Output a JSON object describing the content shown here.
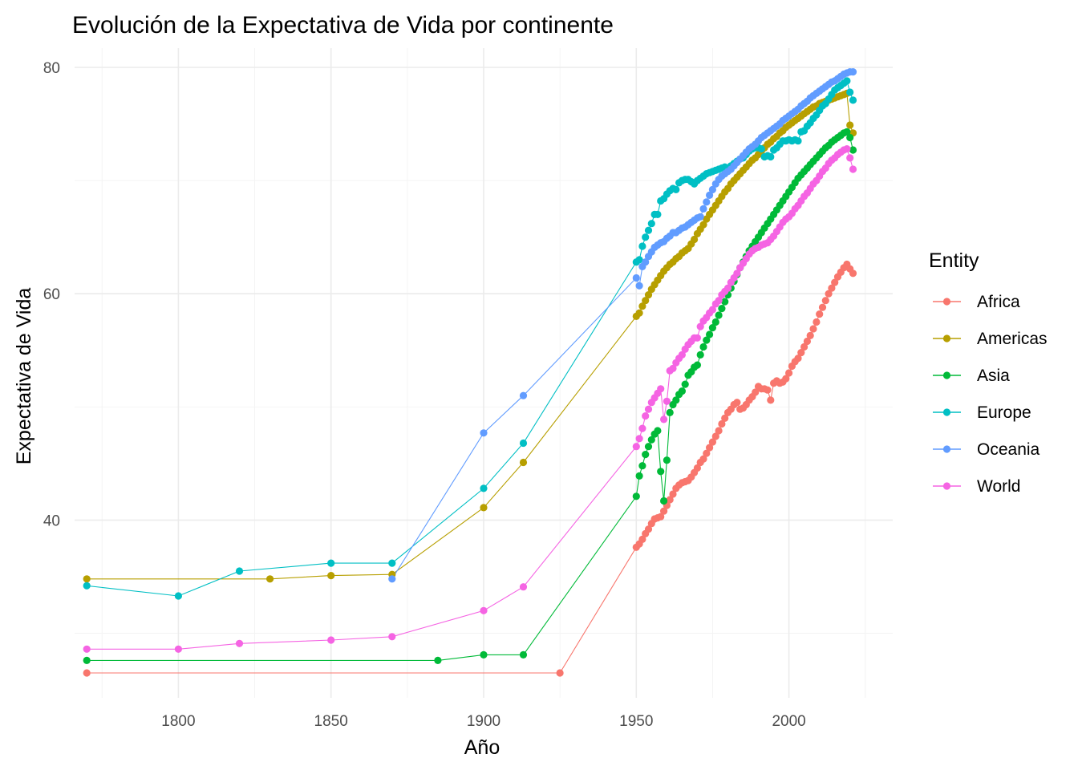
{
  "chart_data": {
    "type": "line",
    "title": "Evolución de la Expectativa de Vida por continente",
    "xlabel": "Año",
    "ylabel": "Expectativa de Vida",
    "xlim": [
      1766,
      2034
    ],
    "ylim": [
      24.3,
      81.7
    ],
    "x_ticks": [
      1800,
      1850,
      1900,
      1950,
      2000
    ],
    "x_minor_ticks": [
      1775,
      1825,
      1875,
      1925,
      1975,
      2025
    ],
    "y_ticks": [
      40,
      60,
      80
    ],
    "y_minor_ticks": [
      30,
      50,
      70
    ],
    "x_tick_labels": [
      "1800",
      "1850",
      "1900",
      "1950",
      "2000"
    ],
    "y_tick_labels": [
      "40",
      "60",
      "80"
    ],
    "grid": true,
    "legend": {
      "title": "Entity",
      "position": "right"
    },
    "series": [
      {
        "name": "Africa",
        "color": "#F8766D",
        "x": [
          1770,
          1925,
          1950,
          1951,
          1952,
          1953,
          1954,
          1955,
          1956,
          1957,
          1958,
          1959,
          1960,
          1961,
          1962,
          1963,
          1964,
          1965,
          1966,
          1967,
          1968,
          1969,
          1970,
          1971,
          1972,
          1973,
          1974,
          1975,
          1976,
          1977,
          1978,
          1979,
          1980,
          1981,
          1982,
          1983,
          1984,
          1985,
          1986,
          1987,
          1988,
          1989,
          1990,
          1991,
          1992,
          1993,
          1994,
          1995,
          1996,
          1997,
          1998,
          1999,
          2000,
          2001,
          2002,
          2003,
          2004,
          2005,
          2006,
          2007,
          2008,
          2009,
          2010,
          2011,
          2012,
          2013,
          2014,
          2015,
          2016,
          2017,
          2018,
          2019,
          2020,
          2021
        ],
        "values": [
          26.5,
          26.5,
          37.6,
          37.9,
          38.3,
          38.8,
          39.2,
          39.7,
          40.1,
          40.2,
          40.3,
          40.8,
          41.3,
          41.8,
          42.3,
          42.8,
          43.1,
          43.3,
          43.4,
          43.5,
          43.8,
          44.2,
          44.6,
          45.1,
          45.4,
          45.9,
          46.4,
          46.9,
          47.4,
          47.9,
          48.5,
          49.0,
          49.5,
          49.8,
          50.2,
          50.4,
          49.8,
          49.9,
          50.2,
          50.6,
          50.9,
          51.3,
          51.8,
          51.6,
          51.6,
          51.5,
          50.6,
          52.1,
          52.3,
          52.1,
          52.2,
          52.5,
          53.0,
          53.6,
          54.0,
          54.3,
          54.8,
          55.3,
          55.8,
          56.3,
          56.9,
          57.5,
          58.2,
          58.8,
          59.4,
          60.0,
          60.5,
          61.0,
          61.5,
          61.9,
          62.3,
          62.6,
          62.2,
          61.8
        ]
      },
      {
        "name": "Americas",
        "color": "#B79F00",
        "x": [
          1770,
          1830,
          1850,
          1870,
          1900,
          1913,
          1950,
          1951,
          1952,
          1953,
          1954,
          1955,
          1956,
          1957,
          1958,
          1959,
          1960,
          1961,
          1962,
          1963,
          1964,
          1965,
          1966,
          1967,
          1968,
          1969,
          1970,
          1971,
          1972,
          1973,
          1974,
          1975,
          1976,
          1977,
          1978,
          1979,
          1980,
          1981,
          1982,
          1983,
          1984,
          1985,
          1986,
          1987,
          1988,
          1989,
          1990,
          1991,
          1992,
          1993,
          1994,
          1995,
          1996,
          1997,
          1998,
          1999,
          2000,
          2001,
          2002,
          2003,
          2004,
          2005,
          2006,
          2007,
          2008,
          2009,
          2010,
          2011,
          2012,
          2013,
          2014,
          2015,
          2016,
          2017,
          2018,
          2019,
          2020,
          2021
        ],
        "values": [
          34.8,
          34.8,
          35.1,
          35.2,
          41.1,
          45.1,
          58.0,
          58.3,
          58.9,
          59.4,
          59.9,
          60.4,
          60.8,
          61.2,
          61.6,
          62.0,
          62.3,
          62.6,
          62.8,
          63.1,
          63.3,
          63.6,
          63.8,
          64.0,
          64.4,
          64.8,
          65.3,
          65.7,
          66.1,
          66.6,
          67.0,
          67.4,
          67.8,
          68.2,
          68.6,
          69.0,
          69.3,
          69.7,
          70.0,
          70.3,
          70.6,
          70.9,
          71.2,
          71.5,
          71.8,
          72.0,
          72.3,
          72.6,
          72.9,
          73.2,
          73.4,
          73.7,
          73.9,
          74.2,
          74.4,
          74.7,
          74.9,
          75.1,
          75.3,
          75.5,
          75.7,
          75.9,
          76.1,
          76.3,
          76.5,
          76.6,
          76.8,
          76.9,
          77.0,
          77.1,
          77.2,
          77.3,
          77.4,
          77.5,
          77.6,
          77.7,
          74.9,
          74.2
        ]
      },
      {
        "name": "Asia",
        "color": "#00BA38",
        "x": [
          1770,
          1885,
          1900,
          1913,
          1950,
          1951,
          1952,
          1953,
          1954,
          1955,
          1956,
          1957,
          1958,
          1959,
          1960,
          1961,
          1962,
          1963,
          1964,
          1965,
          1966,
          1967,
          1968,
          1969,
          1970,
          1971,
          1972,
          1973,
          1974,
          1975,
          1976,
          1977,
          1978,
          1979,
          1980,
          1981,
          1982,
          1983,
          1984,
          1985,
          1986,
          1987,
          1988,
          1989,
          1990,
          1991,
          1992,
          1993,
          1994,
          1995,
          1996,
          1997,
          1998,
          1999,
          2000,
          2001,
          2002,
          2003,
          2004,
          2005,
          2006,
          2007,
          2008,
          2009,
          2010,
          2011,
          2012,
          2013,
          2014,
          2015,
          2016,
          2017,
          2018,
          2019,
          2020,
          2021
        ],
        "values": [
          27.6,
          27.6,
          28.1,
          28.1,
          42.1,
          43.9,
          44.8,
          45.8,
          46.5,
          47.1,
          47.6,
          47.9,
          44.3,
          41.7,
          45.3,
          49.5,
          50.2,
          50.6,
          51.1,
          51.4,
          52.0,
          52.8,
          53.1,
          53.5,
          53.7,
          54.6,
          55.3,
          55.9,
          56.4,
          57.0,
          57.5,
          58.1,
          58.7,
          59.3,
          59.9,
          60.5,
          61.1,
          61.7,
          62.3,
          62.8,
          63.3,
          63.8,
          64.2,
          64.6,
          65.0,
          65.4,
          65.8,
          66.2,
          66.6,
          67.0,
          67.4,
          67.8,
          68.2,
          68.6,
          69.0,
          69.4,
          69.8,
          70.2,
          70.5,
          70.8,
          71.1,
          71.4,
          71.7,
          72.0,
          72.3,
          72.6,
          72.9,
          73.1,
          73.4,
          73.6,
          73.8,
          74.0,
          74.2,
          74.3,
          73.8,
          72.7
        ]
      },
      {
        "name": "Europe",
        "color": "#00BFC4",
        "x": [
          1770,
          1800,
          1820,
          1850,
          1870,
          1900,
          1913,
          1950,
          1951,
          1952,
          1953,
          1954,
          1955,
          1956,
          1957,
          1958,
          1959,
          1960,
          1961,
          1962,
          1963,
          1964,
          1965,
          1966,
          1967,
          1968,
          1969,
          1970,
          1971,
          1972,
          1973,
          1974,
          1975,
          1976,
          1977,
          1978,
          1979,
          1980,
          1981,
          1982,
          1983,
          1984,
          1985,
          1986,
          1987,
          1988,
          1989,
          1990,
          1991,
          1992,
          1993,
          1994,
          1995,
          1996,
          1997,
          1998,
          1999,
          2000,
          2001,
          2002,
          2003,
          2004,
          2005,
          2006,
          2007,
          2008,
          2009,
          2010,
          2011,
          2012,
          2013,
          2014,
          2015,
          2016,
          2017,
          2018,
          2019,
          2020,
          2021
        ],
        "values": [
          34.2,
          33.3,
          35.5,
          36.2,
          36.2,
          42.8,
          46.8,
          62.8,
          63.0,
          64.2,
          65.0,
          65.6,
          66.2,
          67.0,
          67.0,
          68.2,
          68.4,
          68.8,
          69.1,
          69.3,
          69.2,
          69.8,
          70.0,
          70.1,
          70.1,
          69.9,
          69.7,
          70.0,
          70.2,
          70.4,
          70.6,
          70.7,
          70.8,
          70.9,
          71.0,
          71.1,
          71.2,
          71.1,
          71.3,
          71.5,
          71.7,
          71.9,
          72.0,
          72.3,
          72.6,
          72.8,
          72.9,
          72.9,
          72.8,
          72.1,
          72.2,
          72.1,
          72.7,
          72.9,
          73.2,
          73.5,
          73.5,
          73.6,
          73.5,
          73.6,
          73.5,
          74.3,
          74.4,
          74.8,
          75.1,
          75.5,
          75.8,
          76.2,
          76.6,
          76.8,
          77.2,
          77.6,
          78.0,
          78.2,
          78.4,
          78.6,
          78.8,
          77.8,
          77.1
        ]
      },
      {
        "name": "Oceania",
        "color": "#619CFF",
        "x": [
          1870,
          1900,
          1913,
          1950,
          1951,
          1952,
          1953,
          1954,
          1955,
          1956,
          1957,
          1958,
          1959,
          1960,
          1961,
          1962,
          1963,
          1964,
          1965,
          1966,
          1967,
          1968,
          1969,
          1970,
          1971,
          1972,
          1973,
          1974,
          1975,
          1976,
          1977,
          1978,
          1979,
          1980,
          1981,
          1982,
          1983,
          1984,
          1985,
          1986,
          1987,
          1988,
          1989,
          1990,
          1991,
          1992,
          1993,
          1994,
          1995,
          1996,
          1997,
          1998,
          1999,
          2000,
          2001,
          2002,
          2003,
          2004,
          2005,
          2006,
          2007,
          2008,
          2009,
          2010,
          2011,
          2012,
          2013,
          2014,
          2015,
          2016,
          2017,
          2018,
          2019,
          2020,
          2021
        ],
        "values": [
          34.8,
          47.7,
          51.0,
          61.4,
          60.7,
          62.4,
          62.8,
          63.3,
          63.7,
          64.1,
          64.3,
          64.5,
          64.6,
          64.9,
          65.1,
          65.4,
          65.4,
          65.6,
          65.8,
          65.9,
          66.1,
          66.3,
          66.5,
          66.7,
          66.8,
          67.5,
          68.1,
          68.7,
          69.2,
          69.7,
          70.1,
          70.4,
          70.6,
          70.8,
          71.0,
          71.3,
          71.6,
          71.9,
          72.2,
          72.5,
          72.8,
          73.0,
          73.2,
          73.5,
          73.8,
          74.0,
          74.2,
          74.4,
          74.6,
          74.8,
          75.0,
          75.3,
          75.5,
          75.7,
          75.9,
          76.1,
          76.3,
          76.6,
          76.8,
          77.0,
          77.3,
          77.5,
          77.7,
          77.9,
          78.1,
          78.3,
          78.5,
          78.7,
          78.8,
          79.0,
          79.2,
          79.4,
          79.5,
          79.6,
          79.6
        ]
      },
      {
        "name": "World",
        "color": "#F564E3",
        "x": [
          1770,
          1800,
          1820,
          1850,
          1870,
          1900,
          1913,
          1950,
          1951,
          1952,
          1953,
          1954,
          1955,
          1956,
          1957,
          1958,
          1959,
          1960,
          1961,
          1962,
          1963,
          1964,
          1965,
          1966,
          1967,
          1968,
          1969,
          1970,
          1971,
          1972,
          1973,
          1974,
          1975,
          1976,
          1977,
          1978,
          1979,
          1980,
          1981,
          1982,
          1983,
          1984,
          1985,
          1986,
          1987,
          1988,
          1989,
          1990,
          1991,
          1992,
          1993,
          1994,
          1995,
          1996,
          1997,
          1998,
          1999,
          2000,
          2001,
          2002,
          2003,
          2004,
          2005,
          2006,
          2007,
          2008,
          2009,
          2010,
          2011,
          2012,
          2013,
          2014,
          2015,
          2016,
          2017,
          2018,
          2019,
          2020,
          2021
        ],
        "values": [
          28.6,
          28.6,
          29.1,
          29.4,
          29.7,
          32.0,
          34.1,
          46.5,
          47.2,
          48.1,
          49.2,
          49.8,
          50.4,
          50.8,
          51.2,
          51.6,
          48.9,
          50.5,
          53.2,
          53.4,
          53.9,
          54.3,
          54.6,
          55.1,
          55.5,
          55.8,
          56.1,
          56.1,
          57.1,
          57.6,
          57.9,
          58.3,
          58.6,
          59.1,
          59.4,
          59.9,
          60.2,
          60.5,
          61.0,
          61.4,
          61.8,
          62.3,
          62.7,
          63.1,
          63.5,
          63.8,
          64.0,
          64.1,
          64.3,
          64.4,
          64.5,
          64.8,
          65.1,
          65.5,
          65.9,
          66.3,
          66.6,
          66.8,
          67.1,
          67.5,
          67.8,
          68.2,
          68.6,
          68.9,
          69.3,
          69.7,
          70.0,
          70.4,
          70.8,
          71.1,
          71.5,
          71.8,
          72.0,
          72.3,
          72.5,
          72.7,
          72.8,
          72.0,
          71.0
        ]
      }
    ]
  }
}
